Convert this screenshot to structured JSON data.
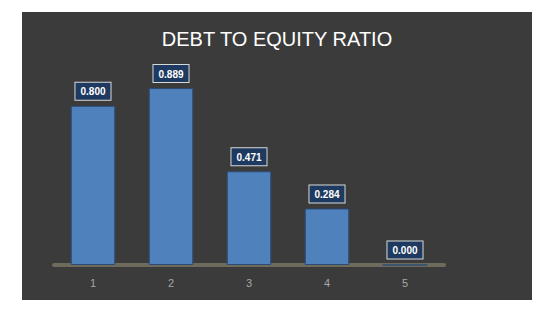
{
  "chart_data": {
    "type": "bar",
    "title": "DEBT TO EQUITY RATIO",
    "categories": [
      "1",
      "2",
      "3",
      "4",
      "5"
    ],
    "values": [
      0.8,
      0.889,
      0.471,
      0.284,
      0
    ],
    "value_labels": [
      "0.800",
      "0.889",
      "0.471",
      "0.284",
      "0.000"
    ],
    "color": "#4f81bd",
    "ylim": [
      0,
      1
    ],
    "yticks": [
      0,
      1
    ],
    "grid": false,
    "data_labels": true,
    "tick_labels": "x"
  }
}
